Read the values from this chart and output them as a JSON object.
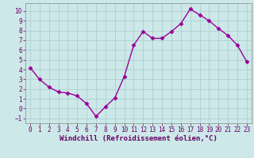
{
  "x": [
    0,
    1,
    2,
    3,
    4,
    5,
    6,
    7,
    8,
    9,
    10,
    11,
    12,
    13,
    14,
    15,
    16,
    17,
    18,
    19,
    20,
    21,
    22,
    23
  ],
  "y": [
    4.2,
    3.0,
    2.2,
    1.7,
    1.6,
    1.3,
    0.5,
    -0.8,
    0.2,
    1.1,
    3.3,
    6.5,
    7.9,
    7.2,
    7.2,
    7.9,
    8.7,
    10.2,
    9.6,
    9.0,
    8.2,
    7.5,
    6.5,
    4.8
  ],
  "line_color": "#990099",
  "marker": "D",
  "marker_size": 2.5,
  "bg_color": "#cce8e8",
  "grid_color": "#b0d0d0",
  "xlabel": "Windchill (Refroidissement éolien,°C)",
  "xlim": [
    -0.5,
    23.5
  ],
  "ylim": [
    -1.5,
    10.8
  ],
  "yticks": [
    -1,
    0,
    1,
    2,
    3,
    4,
    5,
    6,
    7,
    8,
    9,
    10
  ],
  "xticks": [
    0,
    1,
    2,
    3,
    4,
    5,
    6,
    7,
    8,
    9,
    10,
    11,
    12,
    13,
    14,
    15,
    16,
    17,
    18,
    19,
    20,
    21,
    22,
    23
  ],
  "tick_fontsize": 5.5,
  "xlabel_fontsize": 6.5,
  "line_width": 1.0
}
